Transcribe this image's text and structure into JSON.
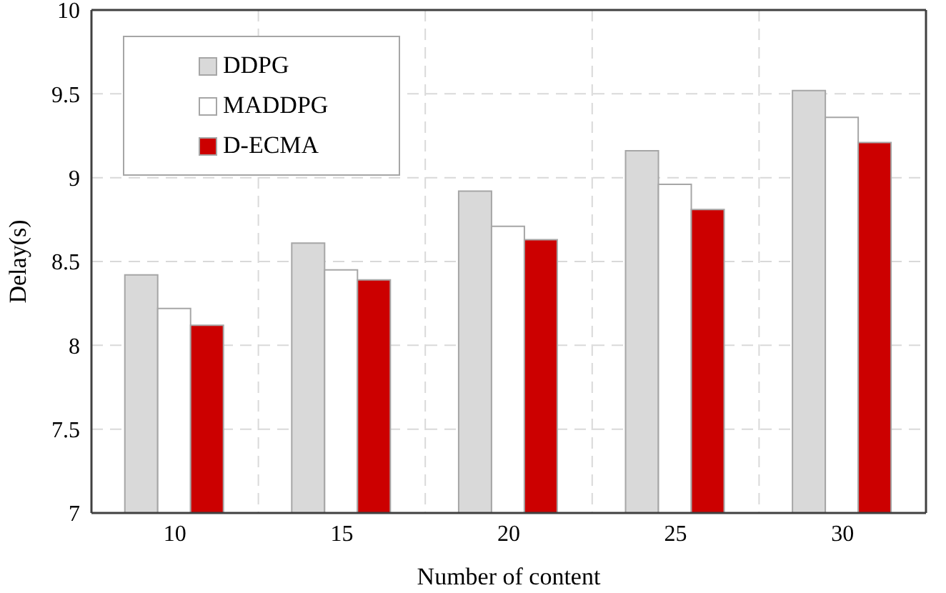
{
  "chart_data": {
    "type": "bar",
    "xlabel": "Number of content",
    "ylabel": "Delay(s)",
    "categories": [
      "10",
      "15",
      "20",
      "25",
      "30"
    ],
    "series": [
      {
        "name": "DDPG",
        "color": "#d9d9d9",
        "values": [
          8.42,
          8.61,
          8.92,
          9.16,
          9.52
        ]
      },
      {
        "name": "MADDPG",
        "color": "#ffffff",
        "values": [
          8.22,
          8.45,
          8.71,
          8.96,
          9.36
        ]
      },
      {
        "name": "D-ECMA",
        "color": "#cc0000",
        "values": [
          8.12,
          8.39,
          8.63,
          8.81,
          9.21
        ]
      }
    ],
    "ylim": [
      7,
      10
    ],
    "yticks": [
      7,
      7.5,
      8,
      8.5,
      9,
      9.5,
      10
    ],
    "grid": true,
    "legend": "top left"
  }
}
